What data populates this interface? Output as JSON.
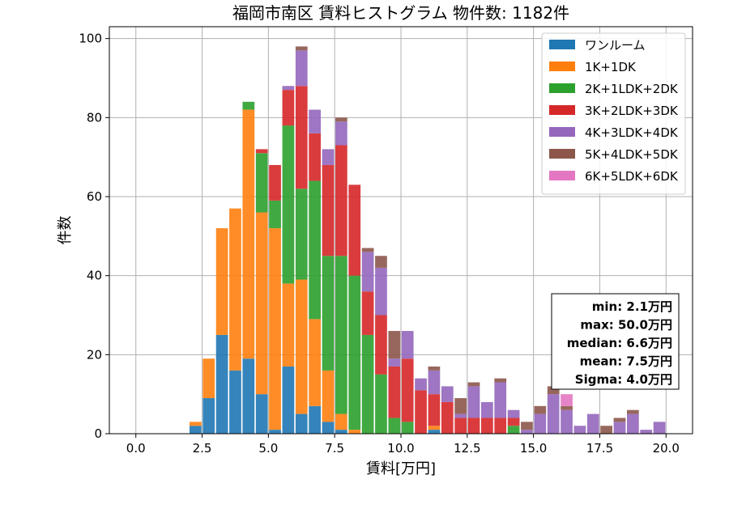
{
  "chart_data": {
    "type": "bar",
    "stacked": true,
    "title": "福岡市南区 賃料ヒストグラム 物件数: 1182件",
    "xlabel": "賃料[万円]",
    "ylabel": "件数",
    "xlim": [
      -1.0,
      21.0
    ],
    "ylim": [
      0,
      103
    ],
    "grid": true,
    "legend_position": "top-right",
    "x_ticks": [
      0.0,
      2.5,
      5.0,
      7.5,
      10.0,
      12.5,
      15.0,
      17.5,
      20.0
    ],
    "x_tick_labels": [
      "0.0",
      "2.5",
      "5.0",
      "7.5",
      "10.0",
      "12.5",
      "15.0",
      "17.5",
      "20.0"
    ],
    "y_ticks": [
      0,
      20,
      40,
      60,
      80,
      100
    ],
    "y_tick_labels": [
      "0",
      "20",
      "40",
      "60",
      "80",
      "100"
    ],
    "bin_width": 0.5,
    "x": [
      2.0,
      2.5,
      3.0,
      3.5,
      4.0,
      4.5,
      5.0,
      5.5,
      6.0,
      6.5,
      7.0,
      7.5,
      8.0,
      8.5,
      9.0,
      9.5,
      10.0,
      10.5,
      11.0,
      11.5,
      12.0,
      12.5,
      13.0,
      13.5,
      14.0,
      14.5,
      15.0,
      15.5,
      16.0,
      16.5,
      17.0,
      17.5,
      18.0,
      18.5,
      19.0,
      19.5
    ],
    "series": [
      {
        "name": "ワンルーム",
        "color": "#1f77b4",
        "values": [
          2,
          9,
          25,
          16,
          19,
          10,
          1,
          17,
          5,
          7,
          3,
          1,
          0,
          0,
          0,
          0,
          0,
          0,
          1,
          0,
          0,
          0,
          0,
          0,
          0,
          0,
          0,
          0,
          0,
          0,
          0,
          0,
          0,
          0,
          0,
          0
        ]
      },
      {
        "name": "1K+1DK",
        "color": "#ff7f0e",
        "values": [
          1,
          10,
          27,
          41,
          63,
          46,
          51,
          21,
          34,
          22,
          13,
          4,
          1,
          0,
          0,
          0,
          0,
          0,
          1,
          0,
          0,
          0,
          0,
          0,
          0,
          0,
          0,
          0,
          0,
          0,
          0,
          0,
          0,
          0,
          0,
          0
        ]
      },
      {
        "name": "2K+1LDK+2DK",
        "color": "#2ca02c",
        "values": [
          0,
          0,
          0,
          0,
          2,
          15,
          7,
          40,
          23,
          35,
          29,
          40,
          39,
          25,
          15,
          4,
          3,
          0,
          0,
          0,
          0,
          0,
          0,
          0,
          2,
          0,
          0,
          0,
          0,
          0,
          0,
          0,
          0,
          0,
          0,
          0
        ]
      },
      {
        "name": "3K+2LDK+3DK",
        "color": "#d62728",
        "values": [
          0,
          0,
          0,
          0,
          0,
          1,
          9,
          9,
          26,
          12,
          23,
          28,
          23,
          11,
          15,
          13,
          16,
          11,
          8,
          8,
          4,
          4,
          4,
          4,
          2,
          0,
          0,
          0,
          0,
          0,
          0,
          0,
          0,
          0,
          0,
          0
        ]
      },
      {
        "name": "4K+3LDK+4DK",
        "color": "#9467bd",
        "values": [
          0,
          0,
          0,
          0,
          0,
          0,
          0,
          1,
          9,
          6,
          4,
          6,
          0,
          10,
          12,
          2,
          7,
          3,
          6,
          4,
          1,
          8,
          4,
          9,
          2,
          1,
          5,
          10,
          6,
          2,
          5,
          0,
          3,
          5,
          1,
          3
        ]
      },
      {
        "name": "5K+4LDK+5DK",
        "color": "#8c564b",
        "values": [
          0,
          0,
          0,
          0,
          0,
          0,
          0,
          0,
          1,
          0,
          0,
          1,
          0,
          1,
          3,
          7,
          0,
          0,
          1,
          0,
          4,
          1,
          0,
          1,
          0,
          2,
          2,
          2,
          1,
          0,
          0,
          2,
          1,
          1,
          0,
          0
        ]
      },
      {
        "name": "6K+5LDK+6DK",
        "color": "#e377c2",
        "values": [
          0,
          0,
          0,
          0,
          0,
          0,
          0,
          0,
          0,
          0,
          0,
          0,
          0,
          0,
          0,
          0,
          0,
          0,
          0,
          0,
          0,
          0,
          0,
          0,
          0,
          0,
          0,
          0,
          3,
          0,
          0,
          0,
          0,
          0,
          0,
          0
        ]
      }
    ],
    "stats_box": [
      "min: 2.1万円",
      "max: 50.0万円",
      "median: 6.6万円",
      "mean: 7.5万円",
      "Sigma: 4.0万円"
    ]
  }
}
